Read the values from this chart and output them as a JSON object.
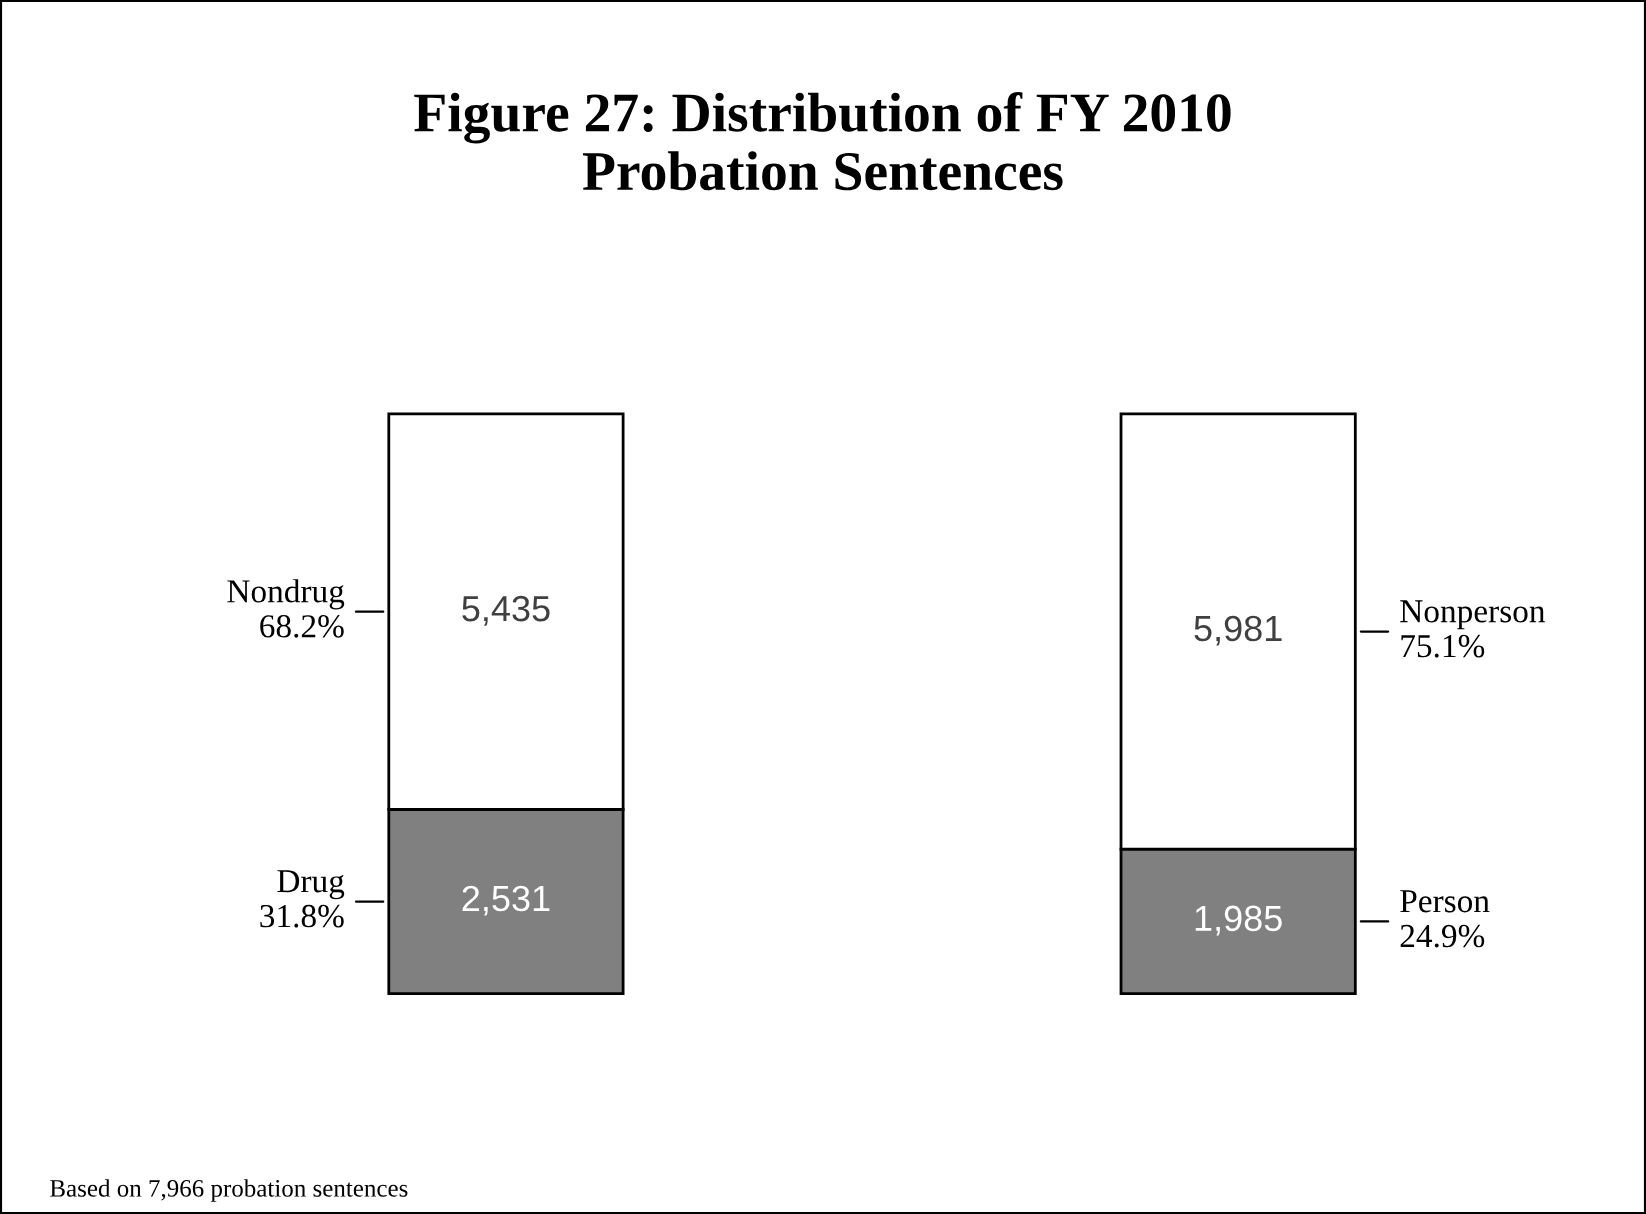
{
  "chart_data": {
    "type": "bar",
    "stacked": true,
    "title": "Figure 27: Distribution of FY 2010\nProbation Sentences",
    "categories": [
      null,
      null
    ],
    "series": [
      {
        "color": "#808080",
        "values": [
          2531,
          1985
        ],
        "value_labels": [
          "2,531",
          "1,985"
        ]
      },
      {
        "color": "#ffffff",
        "values": [
          5435,
          5981
        ],
        "value_labels": [
          "5,435",
          "5,981"
        ]
      }
    ],
    "annotations": [
      "Drug\n31.8%",
      "Nondrug\n68.2%",
      "Person\n24.9%",
      "Nonperson\n75.1%",
      "Based on 7,966 probation sentences"
    ]
  }
}
